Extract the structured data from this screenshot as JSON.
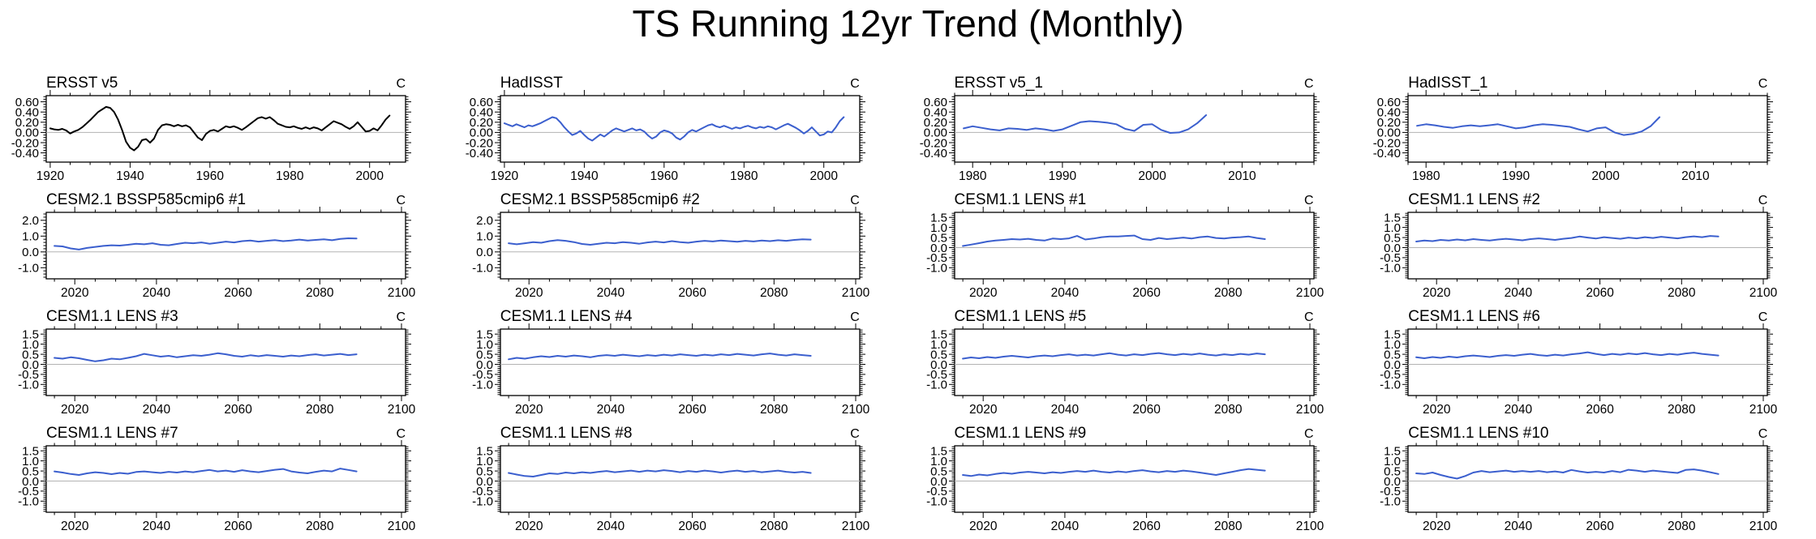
{
  "title": "TS Running 12yr Trend (Monthly)",
  "unit_label": "C",
  "colors": {
    "observation_line": "#000000",
    "model_line": "#3B5FCE",
    "zero_line": "#b3b3b3",
    "axis": "#000000"
  },
  "chart_data": [
    {
      "type": "line",
      "title": "ERSST v5",
      "line_color": "#000000",
      "xlim": [
        1919,
        2009
      ],
      "xticks": [
        1920,
        1940,
        1960,
        1980,
        2000
      ],
      "xminor": 5,
      "ylim": [
        -0.58,
        0.72
      ],
      "ytick_values": [
        0.6,
        0.4,
        0.2,
        0.0,
        -0.2,
        -0.4
      ],
      "ytick_labels": [
        "0.60",
        "0.40",
        "0.20",
        "0.00",
        "-0.20",
        "-0.40"
      ],
      "yminor": 0.05,
      "x_start": 1920,
      "x_step": 1,
      "values": [
        0.08,
        0.06,
        0.05,
        0.07,
        0.04,
        -0.02,
        0.02,
        0.05,
        0.1,
        0.17,
        0.24,
        0.32,
        0.4,
        0.45,
        0.5,
        0.48,
        0.4,
        0.25,
        0.05,
        -0.18,
        -0.3,
        -0.35,
        -0.28,
        -0.15,
        -0.13,
        -0.2,
        -0.12,
        0.05,
        0.14,
        0.16,
        0.15,
        0.12,
        0.15,
        0.12,
        0.14,
        0.1,
        0.0,
        -0.1,
        -0.15,
        -0.03,
        0.03,
        0.05,
        0.02,
        0.07,
        0.12,
        0.1,
        0.12,
        0.09,
        0.05,
        0.1,
        0.16,
        0.22,
        0.28,
        0.3,
        0.27,
        0.3,
        0.24,
        0.17,
        0.14,
        0.11,
        0.1,
        0.12,
        0.09,
        0.07,
        0.1,
        0.07,
        0.1,
        0.08,
        0.04,
        0.1,
        0.16,
        0.22,
        0.19,
        0.16,
        0.11,
        0.07,
        0.12,
        0.2,
        0.11,
        0.02,
        0.03,
        0.08,
        0.04,
        0.14,
        0.25,
        0.33
      ]
    },
    {
      "type": "line",
      "title": "HadISST",
      "line_color": "#3B5FCE",
      "xlim": [
        1919,
        2009
      ],
      "xticks": [
        1920,
        1940,
        1960,
        1980,
        2000
      ],
      "xminor": 5,
      "ylim": [
        -0.58,
        0.72
      ],
      "ytick_values": [
        0.6,
        0.4,
        0.2,
        0.0,
        -0.2,
        -0.4
      ],
      "ytick_labels": [
        "0.60",
        "0.40",
        "0.20",
        "0.00",
        "-0.20",
        "-0.40"
      ],
      "yminor": 0.05,
      "x_start": 1920,
      "x_step": 1,
      "values": [
        0.18,
        0.15,
        0.12,
        0.16,
        0.13,
        0.1,
        0.14,
        0.12,
        0.15,
        0.18,
        0.22,
        0.26,
        0.3,
        0.28,
        0.2,
        0.1,
        0.02,
        -0.05,
        -0.02,
        0.03,
        -0.05,
        -0.12,
        -0.16,
        -0.1,
        -0.04,
        -0.08,
        -0.02,
        0.04,
        0.08,
        0.05,
        0.02,
        0.05,
        0.08,
        0.04,
        0.06,
        0.02,
        -0.06,
        -0.12,
        -0.08,
        0.0,
        0.04,
        0.02,
        -0.02,
        -0.1,
        -0.14,
        -0.08,
        0.0,
        0.05,
        0.02,
        0.06,
        0.1,
        0.14,
        0.16,
        0.12,
        0.1,
        0.13,
        0.1,
        0.07,
        0.1,
        0.08,
        0.11,
        0.13,
        0.1,
        0.08,
        0.11,
        0.09,
        0.12,
        0.1,
        0.06,
        0.1,
        0.14,
        0.17,
        0.13,
        0.09,
        0.04,
        -0.02,
        0.03,
        0.1,
        0.02,
        -0.06,
        -0.04,
        0.02,
        0.0,
        0.1,
        0.22,
        0.3
      ]
    },
    {
      "type": "line",
      "title": "ERSST v5_1",
      "line_color": "#3B5FCE",
      "xlim": [
        1978,
        2018
      ],
      "xticks": [
        1980,
        1990,
        2000,
        2010
      ],
      "xminor": 2,
      "ylim": [
        -0.58,
        0.72
      ],
      "ytick_values": [
        0.6,
        0.4,
        0.2,
        0.0,
        -0.2,
        -0.4
      ],
      "ytick_labels": [
        "0.60",
        "0.40",
        "0.20",
        "0.00",
        "-0.20",
        "-0.40"
      ],
      "yminor": 0.05,
      "x_start": 1979,
      "x_step": 1,
      "values": [
        0.08,
        0.12,
        0.09,
        0.06,
        0.04,
        0.08,
        0.07,
        0.05,
        0.08,
        0.06,
        0.03,
        0.06,
        0.13,
        0.2,
        0.22,
        0.21,
        0.19,
        0.16,
        0.07,
        0.03,
        0.15,
        0.16,
        0.05,
        -0.01,
        0.0,
        0.06,
        0.18,
        0.34
      ]
    },
    {
      "type": "line",
      "title": "HadISST_1",
      "line_color": "#3B5FCE",
      "xlim": [
        1978,
        2018
      ],
      "xticks": [
        1980,
        1990,
        2000,
        2010
      ],
      "xminor": 2,
      "ylim": [
        -0.58,
        0.72
      ],
      "ytick_values": [
        0.6,
        0.4,
        0.2,
        0.0,
        -0.2,
        -0.4
      ],
      "ytick_labels": [
        "0.60",
        "0.40",
        "0.20",
        "0.00",
        "-0.20",
        "-0.40"
      ],
      "yminor": 0.05,
      "x_start": 1979,
      "x_step": 1,
      "values": [
        0.13,
        0.16,
        0.14,
        0.11,
        0.09,
        0.12,
        0.14,
        0.12,
        0.14,
        0.16,
        0.12,
        0.08,
        0.1,
        0.14,
        0.16,
        0.15,
        0.13,
        0.11,
        0.06,
        0.02,
        0.08,
        0.1,
        0.0,
        -0.05,
        -0.03,
        0.02,
        0.12,
        0.3
      ]
    },
    {
      "type": "line",
      "title": "CESM2.1 BSSP585cmip6 #1",
      "line_color": "#3B5FCE",
      "xlim": [
        2013,
        2101
      ],
      "xticks": [
        2020,
        2040,
        2060,
        2080,
        2100
      ],
      "xminor": 5,
      "ylim": [
        -1.7,
        2.5
      ],
      "ytick_values": [
        2.0,
        1.0,
        0.0,
        -1.0
      ],
      "ytick_labels": [
        "2.0",
        "1.0",
        "0.0",
        "-1.0"
      ],
      "yminor": 0.2,
      "x_start": 2015,
      "x_step": 2,
      "values": [
        0.38,
        0.35,
        0.22,
        0.15,
        0.25,
        0.32,
        0.38,
        0.42,
        0.4,
        0.45,
        0.52,
        0.48,
        0.55,
        0.45,
        0.42,
        0.5,
        0.58,
        0.55,
        0.6,
        0.52,
        0.58,
        0.65,
        0.6,
        0.68,
        0.72,
        0.65,
        0.7,
        0.75,
        0.68,
        0.72,
        0.78,
        0.72,
        0.76,
        0.8,
        0.74,
        0.82,
        0.86,
        0.85
      ]
    },
    {
      "type": "line",
      "title": "CESM2.1 BSSP585cmip6 #2",
      "line_color": "#3B5FCE",
      "xlim": [
        2013,
        2101
      ],
      "xticks": [
        2020,
        2040,
        2060,
        2080,
        2100
      ],
      "xminor": 5,
      "ylim": [
        -1.7,
        2.5
      ],
      "ytick_values": [
        2.0,
        1.0,
        0.0,
        -1.0
      ],
      "ytick_labels": [
        "2.0",
        "1.0",
        "0.0",
        "-1.0"
      ],
      "yminor": 0.2,
      "x_start": 2015,
      "x_step": 2,
      "values": [
        0.55,
        0.48,
        0.55,
        0.62,
        0.58,
        0.68,
        0.75,
        0.7,
        0.62,
        0.5,
        0.45,
        0.52,
        0.58,
        0.55,
        0.62,
        0.58,
        0.52,
        0.6,
        0.65,
        0.6,
        0.68,
        0.62,
        0.58,
        0.65,
        0.7,
        0.66,
        0.72,
        0.68,
        0.64,
        0.7,
        0.66,
        0.72,
        0.68,
        0.74,
        0.7,
        0.76,
        0.8,
        0.78
      ]
    },
    {
      "type": "line",
      "title": "CESM1.1 LENS #1",
      "line_color": "#3B5FCE",
      "xlim": [
        2013,
        2101
      ],
      "xticks": [
        2020,
        2040,
        2060,
        2080,
        2100
      ],
      "xminor": 5,
      "ylim": [
        -1.55,
        1.75
      ],
      "ytick_values": [
        1.5,
        1.0,
        0.5,
        0.0,
        -0.5,
        -1.0
      ],
      "ytick_labels": [
        "1.5",
        "1.0",
        "0.5",
        "0.0",
        "-0.5",
        "-1.0"
      ],
      "yminor": 0.1,
      "x_start": 2015,
      "x_step": 2,
      "values": [
        0.08,
        0.15,
        0.22,
        0.3,
        0.35,
        0.38,
        0.42,
        0.4,
        0.44,
        0.38,
        0.35,
        0.45,
        0.42,
        0.46,
        0.58,
        0.4,
        0.45,
        0.52,
        0.55,
        0.55,
        0.58,
        0.6,
        0.42,
        0.38,
        0.48,
        0.42,
        0.46,
        0.5,
        0.45,
        0.52,
        0.55,
        0.48,
        0.45,
        0.5,
        0.52,
        0.55,
        0.48,
        0.42
      ]
    },
    {
      "type": "line",
      "title": "CESM1.1 LENS #2",
      "line_color": "#3B5FCE",
      "xlim": [
        2013,
        2101
      ],
      "xticks": [
        2020,
        2040,
        2060,
        2080,
        2100
      ],
      "xminor": 5,
      "ylim": [
        -1.55,
        1.75
      ],
      "ytick_values": [
        1.5,
        1.0,
        0.5,
        0.0,
        -0.5,
        -1.0
      ],
      "ytick_labels": [
        "1.5",
        "1.0",
        "0.5",
        "0.0",
        "-0.5",
        "-1.0"
      ],
      "yminor": 0.1,
      "x_start": 2015,
      "x_step": 2,
      "values": [
        0.3,
        0.35,
        0.32,
        0.38,
        0.35,
        0.4,
        0.36,
        0.42,
        0.38,
        0.35,
        0.4,
        0.44,
        0.4,
        0.36,
        0.42,
        0.46,
        0.42,
        0.38,
        0.44,
        0.48,
        0.55,
        0.5,
        0.45,
        0.52,
        0.48,
        0.44,
        0.5,
        0.46,
        0.52,
        0.48,
        0.54,
        0.5,
        0.46,
        0.52,
        0.56,
        0.52,
        0.58,
        0.55
      ]
    },
    {
      "type": "line",
      "title": "CESM1.1 LENS #3",
      "line_color": "#3B5FCE",
      "xlim": [
        2013,
        2101
      ],
      "xticks": [
        2020,
        2040,
        2060,
        2080,
        2100
      ],
      "xminor": 5,
      "ylim": [
        -1.55,
        1.75
      ],
      "ytick_values": [
        1.5,
        1.0,
        0.5,
        0.0,
        -0.5,
        -1.0
      ],
      "ytick_labels": [
        "1.5",
        "1.0",
        "0.5",
        "0.0",
        "-0.5",
        "-1.0"
      ],
      "yminor": 0.1,
      "x_start": 2015,
      "x_step": 2,
      "values": [
        0.32,
        0.28,
        0.35,
        0.3,
        0.22,
        0.15,
        0.2,
        0.28,
        0.25,
        0.32,
        0.4,
        0.52,
        0.45,
        0.38,
        0.42,
        0.35,
        0.4,
        0.45,
        0.42,
        0.48,
        0.55,
        0.5,
        0.42,
        0.38,
        0.45,
        0.4,
        0.46,
        0.42,
        0.38,
        0.44,
        0.4,
        0.46,
        0.5,
        0.44,
        0.48,
        0.52,
        0.46,
        0.5
      ]
    },
    {
      "type": "line",
      "title": "CESM1.1 LENS #4",
      "line_color": "#3B5FCE",
      "xlim": [
        2013,
        2101
      ],
      "xticks": [
        2020,
        2040,
        2060,
        2080,
        2100
      ],
      "xminor": 5,
      "ylim": [
        -1.55,
        1.75
      ],
      "ytick_values": [
        1.5,
        1.0,
        0.5,
        0.0,
        -0.5,
        -1.0
      ],
      "ytick_labels": [
        "1.5",
        "1.0",
        "0.5",
        "0.0",
        "-0.5",
        "-1.0"
      ],
      "yminor": 0.1,
      "x_start": 2015,
      "x_step": 2,
      "values": [
        0.25,
        0.32,
        0.28,
        0.35,
        0.4,
        0.36,
        0.42,
        0.38,
        0.44,
        0.4,
        0.35,
        0.42,
        0.46,
        0.42,
        0.48,
        0.44,
        0.4,
        0.46,
        0.42,
        0.48,
        0.44,
        0.5,
        0.46,
        0.42,
        0.48,
        0.44,
        0.5,
        0.46,
        0.52,
        0.48,
        0.44,
        0.5,
        0.54,
        0.48,
        0.44,
        0.5,
        0.46,
        0.42
      ]
    },
    {
      "type": "line",
      "title": "CESM1.1 LENS #5",
      "line_color": "#3B5FCE",
      "xlim": [
        2013,
        2101
      ],
      "xticks": [
        2020,
        2040,
        2060,
        2080,
        2100
      ],
      "xminor": 5,
      "ylim": [
        -1.55,
        1.75
      ],
      "ytick_values": [
        1.5,
        1.0,
        0.5,
        0.0,
        -0.5,
        -1.0
      ],
      "ytick_labels": [
        "1.5",
        "1.0",
        "0.5",
        "0.0",
        "-0.5",
        "-1.0"
      ],
      "yminor": 0.1,
      "x_start": 2015,
      "x_step": 2,
      "values": [
        0.28,
        0.34,
        0.3,
        0.36,
        0.32,
        0.38,
        0.42,
        0.38,
        0.34,
        0.4,
        0.44,
        0.4,
        0.46,
        0.5,
        0.44,
        0.48,
        0.44,
        0.5,
        0.55,
        0.48,
        0.44,
        0.5,
        0.46,
        0.52,
        0.56,
        0.5,
        0.46,
        0.52,
        0.48,
        0.54,
        0.48,
        0.44,
        0.5,
        0.46,
        0.52,
        0.48,
        0.54,
        0.5
      ]
    },
    {
      "type": "line",
      "title": "CESM1.1 LENS #6",
      "line_color": "#3B5FCE",
      "xlim": [
        2013,
        2101
      ],
      "xticks": [
        2020,
        2040,
        2060,
        2080,
        2100
      ],
      "xminor": 5,
      "ylim": [
        -1.55,
        1.75
      ],
      "ytick_values": [
        1.5,
        1.0,
        0.5,
        0.0,
        -0.5,
        -1.0
      ],
      "ytick_labels": [
        "1.5",
        "1.0",
        "0.5",
        "0.0",
        "-0.5",
        "-1.0"
      ],
      "yminor": 0.1,
      "x_start": 2015,
      "x_step": 2,
      "values": [
        0.35,
        0.3,
        0.36,
        0.32,
        0.38,
        0.34,
        0.4,
        0.44,
        0.4,
        0.36,
        0.42,
        0.46,
        0.42,
        0.48,
        0.52,
        0.46,
        0.42,
        0.48,
        0.44,
        0.5,
        0.54,
        0.6,
        0.52,
        0.46,
        0.52,
        0.48,
        0.54,
        0.5,
        0.56,
        0.5,
        0.46,
        0.52,
        0.48,
        0.54,
        0.58,
        0.52,
        0.48,
        0.44
      ]
    },
    {
      "type": "line",
      "title": "CESM1.1 LENS #7",
      "line_color": "#3B5FCE",
      "xlim": [
        2013,
        2101
      ],
      "xticks": [
        2020,
        2040,
        2060,
        2080,
        2100
      ],
      "xminor": 5,
      "ylim": [
        -1.55,
        1.75
      ],
      "ytick_values": [
        1.5,
        1.0,
        0.5,
        0.0,
        -0.5,
        -1.0
      ],
      "ytick_labels": [
        "1.5",
        "1.0",
        "0.5",
        "0.0",
        "-0.5",
        "-1.0"
      ],
      "yminor": 0.1,
      "x_start": 2015,
      "x_step": 2,
      "values": [
        0.48,
        0.42,
        0.35,
        0.3,
        0.38,
        0.44,
        0.4,
        0.34,
        0.4,
        0.36,
        0.45,
        0.48,
        0.44,
        0.4,
        0.46,
        0.42,
        0.48,
        0.44,
        0.5,
        0.55,
        0.48,
        0.52,
        0.46,
        0.54,
        0.48,
        0.44,
        0.5,
        0.56,
        0.6,
        0.48,
        0.42,
        0.38,
        0.46,
        0.52,
        0.48,
        0.62,
        0.55,
        0.48
      ]
    },
    {
      "type": "line",
      "title": "CESM1.1 LENS #8",
      "line_color": "#3B5FCE",
      "xlim": [
        2013,
        2101
      ],
      "xticks": [
        2020,
        2040,
        2060,
        2080,
        2100
      ],
      "xminor": 5,
      "ylim": [
        -1.55,
        1.75
      ],
      "ytick_values": [
        1.5,
        1.0,
        0.5,
        0.0,
        -0.5,
        -1.0
      ],
      "ytick_labels": [
        "1.5",
        "1.0",
        "0.5",
        "0.0",
        "-0.5",
        "-1.0"
      ],
      "yminor": 0.1,
      "x_start": 2015,
      "x_step": 2,
      "values": [
        0.4,
        0.32,
        0.25,
        0.22,
        0.3,
        0.38,
        0.35,
        0.42,
        0.38,
        0.44,
        0.4,
        0.46,
        0.5,
        0.44,
        0.48,
        0.52,
        0.46,
        0.52,
        0.48,
        0.54,
        0.5,
        0.44,
        0.5,
        0.46,
        0.52,
        0.48,
        0.42,
        0.48,
        0.52,
        0.46,
        0.5,
        0.44,
        0.48,
        0.52,
        0.46,
        0.42,
        0.46,
        0.4
      ]
    },
    {
      "type": "line",
      "title": "CESM1.1 LENS #9",
      "line_color": "#3B5FCE",
      "xlim": [
        2013,
        2101
      ],
      "xticks": [
        2020,
        2040,
        2060,
        2080,
        2100
      ],
      "xminor": 5,
      "ylim": [
        -1.55,
        1.75
      ],
      "ytick_values": [
        1.5,
        1.0,
        0.5,
        0.0,
        -0.5,
        -1.0
      ],
      "ytick_labels": [
        "1.5",
        "1.0",
        "0.5",
        "0.0",
        "-0.5",
        "-1.0"
      ],
      "yminor": 0.1,
      "x_start": 2015,
      "x_step": 2,
      "values": [
        0.3,
        0.25,
        0.32,
        0.28,
        0.35,
        0.4,
        0.36,
        0.42,
        0.46,
        0.42,
        0.38,
        0.44,
        0.4,
        0.46,
        0.5,
        0.46,
        0.52,
        0.46,
        0.42,
        0.48,
        0.44,
        0.5,
        0.54,
        0.48,
        0.44,
        0.5,
        0.46,
        0.52,
        0.48,
        0.42,
        0.36,
        0.3,
        0.38,
        0.46,
        0.54,
        0.6,
        0.56,
        0.52
      ]
    },
    {
      "type": "line",
      "title": "CESM1.1 LENS #10",
      "line_color": "#3B5FCE",
      "xlim": [
        2013,
        2101
      ],
      "xticks": [
        2020,
        2040,
        2060,
        2080,
        2100
      ],
      "xminor": 5,
      "ylim": [
        -1.55,
        1.75
      ],
      "ytick_values": [
        1.5,
        1.0,
        0.5,
        0.0,
        -0.5,
        -1.0
      ],
      "ytick_labels": [
        "1.5",
        "1.0",
        "0.5",
        "0.0",
        "-0.5",
        "-1.0"
      ],
      "yminor": 0.1,
      "x_start": 2015,
      "x_step": 2,
      "values": [
        0.38,
        0.35,
        0.42,
        0.3,
        0.2,
        0.12,
        0.25,
        0.42,
        0.5,
        0.44,
        0.48,
        0.52,
        0.46,
        0.5,
        0.46,
        0.5,
        0.44,
        0.48,
        0.42,
        0.55,
        0.48,
        0.42,
        0.46,
        0.42,
        0.5,
        0.44,
        0.56,
        0.52,
        0.46,
        0.52,
        0.48,
        0.44,
        0.4,
        0.55,
        0.58,
        0.52,
        0.44,
        0.35
      ]
    }
  ]
}
